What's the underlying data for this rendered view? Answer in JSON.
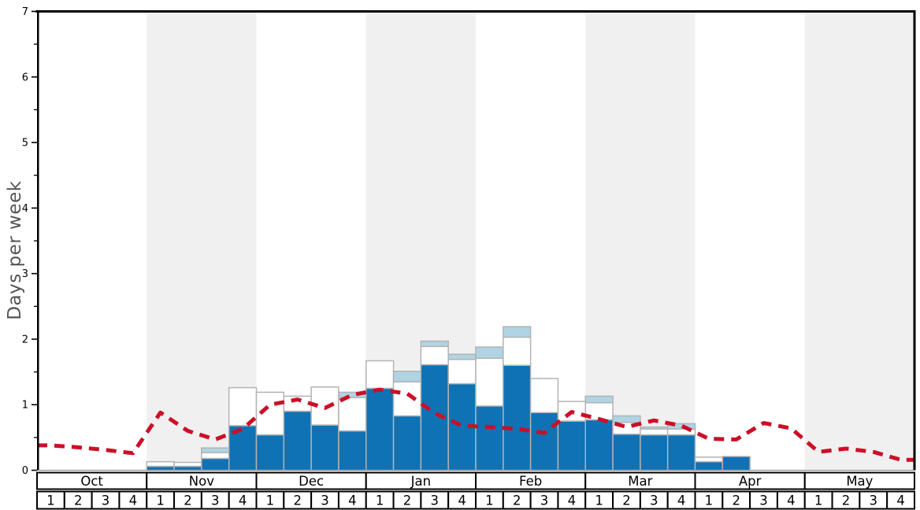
{
  "chart_data": {
    "type": "bar",
    "title": "",
    "ylabel": "Days per week",
    "xlabel": "",
    "ylim": [
      0,
      7
    ],
    "y_major_ticks": [
      "0",
      "1",
      "2",
      "3",
      "4",
      "5",
      "6",
      "7"
    ],
    "y_minor_tick_step": 0.5,
    "grid": "off",
    "legend": "none",
    "months": [
      "Oct",
      "Nov",
      "Dec",
      "Jan",
      "Feb",
      "Mar",
      "Apr",
      "May"
    ],
    "week_labels": [
      "1",
      "2",
      "3",
      "4"
    ],
    "month_band_colors": [
      "#ffffff",
      "#f0f0f0"
    ],
    "bar_border_color": "#b3b3b3",
    "axis_color": "#000000",
    "baseline_color": "#888888",
    "series": [
      {
        "name": "snowfall-days-primary",
        "type": "bar-stack-bottom",
        "color": "#0e72b5",
        "values": [
          0,
          0,
          0,
          0,
          0.06,
          0.06,
          0.18,
          0.68,
          0.54,
          0.9,
          0.69,
          0.6,
          1.25,
          0.83,
          1.61,
          1.32,
          0.98,
          1.6,
          0.88,
          0.75,
          0.77,
          0.55,
          0.54,
          0.54,
          0.13,
          0.21,
          0,
          0,
          0,
          0,
          0,
          0
        ]
      },
      {
        "name": "snowfall-days-secondary",
        "type": "bar-stack-middle",
        "color": "#ffffff",
        "values": [
          0,
          0,
          0,
          0,
          0.07,
          0.06,
          0.09,
          0.58,
          0.65,
          0.23,
          0.58,
          0.51,
          0.42,
          0.52,
          0.28,
          0.37,
          0.73,
          0.43,
          0.52,
          0.3,
          0.26,
          0.18,
          0.09,
          0.09,
          0.07,
          0,
          0,
          0,
          0,
          0,
          0,
          0
        ]
      },
      {
        "name": "snowfall-days-tertiary",
        "type": "bar-stack-top",
        "color": "#b0d4e3",
        "values": [
          0,
          0,
          0,
          0,
          0,
          0,
          0.07,
          0,
          0,
          0,
          0,
          0.08,
          0,
          0.16,
          0.08,
          0.08,
          0.17,
          0.16,
          0,
          0,
          0.1,
          0.1,
          0.03,
          0.08,
          0,
          0,
          0,
          0,
          0,
          0,
          0,
          0
        ]
      },
      {
        "name": "trend-line",
        "type": "line",
        "style": "dashed",
        "color": "#cc0f28",
        "values": [
          0.38,
          0.35,
          0.31,
          0.26,
          0.88,
          0.6,
          0.47,
          0.63,
          1.0,
          1.08,
          0.95,
          1.15,
          1.23,
          1.17,
          0.87,
          0.68,
          0.66,
          0.63,
          0.57,
          0.89,
          0.78,
          0.66,
          0.76,
          0.68,
          0.48,
          0.47,
          0.72,
          0.64,
          0.28,
          0.33,
          0.28,
          0.16
        ]
      }
    ]
  }
}
